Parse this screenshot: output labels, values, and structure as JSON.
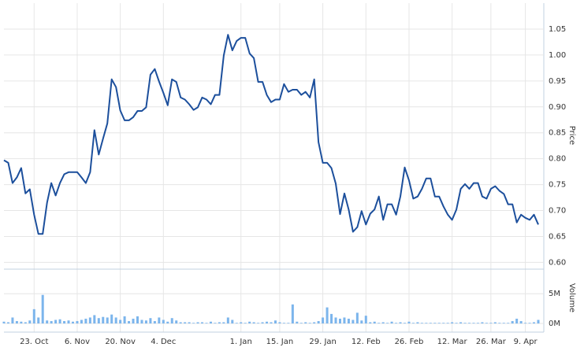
{
  "chart_data": [
    {
      "type": "line",
      "y_label": "Price",
      "color": "#1c4f9c",
      "grid": true,
      "categories": [
        null,
        null,
        null,
        null,
        null,
        null,
        null,
        "23. Oct",
        null,
        null,
        null,
        null,
        null,
        null,
        null,
        null,
        null,
        "6. Nov",
        null,
        null,
        null,
        null,
        null,
        null,
        null,
        null,
        null,
        "20. Nov",
        null,
        null,
        null,
        null,
        null,
        null,
        null,
        null,
        null,
        "4. Dec",
        null,
        null,
        null,
        null,
        null,
        null,
        null,
        null,
        null,
        null,
        null,
        null,
        null,
        null,
        null,
        null,
        null,
        "1. Jan",
        null,
        null,
        null,
        null,
        null,
        null,
        null,
        null,
        "15. Jan",
        null,
        null,
        null,
        null,
        null,
        null,
        null,
        null,
        null,
        "29. Jan",
        null,
        null,
        null,
        null,
        null,
        null,
        null,
        null,
        null,
        "12. Feb",
        null,
        null,
        null,
        null,
        null,
        null,
        null,
        null,
        null,
        "26. Feb",
        null,
        null,
        null,
        null,
        null,
        null,
        null,
        null,
        null,
        "12. Mar",
        null,
        null,
        null,
        null,
        null,
        null,
        null,
        null,
        "26. Mar",
        null,
        null,
        null,
        null,
        null,
        null,
        null,
        "9. Apr",
        null,
        null,
        null
      ],
      "values": [
        0.797,
        0.792,
        0.753,
        0.764,
        0.782,
        0.733,
        0.741,
        0.692,
        0.655,
        0.655,
        0.715,
        0.753,
        0.729,
        0.753,
        0.77,
        0.774,
        0.774,
        0.774,
        0.764,
        0.753,
        0.774,
        0.855,
        0.808,
        0.839,
        0.868,
        0.953,
        0.938,
        0.893,
        0.874,
        0.874,
        0.88,
        0.892,
        0.892,
        0.899,
        0.962,
        0.973,
        0.949,
        0.927,
        0.903,
        0.953,
        0.948,
        0.918,
        0.914,
        0.905,
        0.894,
        0.899,
        0.918,
        0.914,
        0.905,
        0.923,
        0.923,
        0.999,
        1.039,
        1.009,
        1.027,
        1.033,
        1.033,
        1.003,
        0.994,
        0.948,
        0.948,
        0.923,
        0.909,
        0.914,
        0.914,
        0.944,
        0.929,
        0.933,
        0.933,
        0.923,
        0.929,
        0.918,
        0.953,
        0.832,
        0.792,
        0.792,
        0.782,
        0.752,
        0.693,
        0.733,
        0.702,
        0.659,
        0.668,
        0.699,
        0.673,
        0.694,
        0.702,
        0.727,
        0.682,
        0.712,
        0.712,
        0.692,
        0.727,
        0.783,
        0.758,
        0.723,
        0.727,
        0.742,
        0.762,
        0.762,
        0.727,
        0.727,
        0.708,
        0.692,
        0.682,
        0.702,
        0.742,
        0.751,
        0.742,
        0.753,
        0.753,
        0.727,
        0.723,
        0.742,
        0.747,
        0.738,
        0.732,
        0.712,
        0.712,
        0.677,
        0.692,
        0.686,
        0.682,
        0.692,
        0.673
      ],
      "ylim": [
        0.59,
        1.1
      ],
      "yticks": [
        {
          "value": 0.6,
          "label": "0.60"
        },
        {
          "value": 0.65,
          "label": "0.65"
        },
        {
          "value": 0.7,
          "label": "0.70"
        },
        {
          "value": 0.75,
          "label": "0.75"
        },
        {
          "value": 0.8,
          "label": "0.80"
        },
        {
          "value": 0.85,
          "label": "0.85"
        },
        {
          "value": 0.9,
          "label": "0.90"
        },
        {
          "value": 0.95,
          "label": "0.95"
        },
        {
          "value": 1.0,
          "label": "1.00"
        },
        {
          "value": 1.05,
          "label": "1.05"
        }
      ]
    },
    {
      "type": "bar",
      "y_label": "Volume",
      "color": "#7cb5ec",
      "grid": true,
      "values": [
        0.3,
        0.2,
        1.0,
        0.4,
        0.3,
        0.2,
        0.5,
        2.4,
        1.0,
        4.8,
        0.5,
        0.4,
        0.6,
        0.7,
        0.4,
        0.5,
        0.3,
        0.4,
        0.6,
        0.8,
        1.0,
        1.4,
        0.9,
        1.1,
        1.0,
        1.5,
        1.0,
        0.6,
        1.2,
        0.4,
        0.8,
        1.2,
        0.6,
        0.5,
        0.9,
        0.4,
        1.0,
        0.6,
        0.3,
        0.9,
        0.5,
        0.2,
        0.2,
        0.2,
        0.1,
        0.2,
        0.2,
        0.1,
        0.3,
        0.1,
        0.2,
        0.2,
        1.0,
        0.6,
        0.1,
        0.2,
        0.1,
        0.3,
        0.2,
        0.1,
        0.2,
        0.3,
        0.2,
        0.5,
        0.2,
        0.1,
        0.1,
        3.2,
        0.3,
        0.1,
        0.2,
        0.1,
        0.2,
        0.4,
        1.0,
        2.7,
        1.6,
        1.0,
        0.8,
        1.0,
        0.8,
        0.6,
        1.8,
        0.5,
        1.3,
        0.2,
        0.3,
        0.1,
        0.2,
        0.1,
        0.3,
        0.1,
        0.2,
        0.1,
        0.3,
        0.1,
        0.2,
        0.1,
        0.1,
        0.1,
        0.1,
        0.1,
        0.1,
        0.1,
        0.2,
        0.1,
        0.2,
        0.1,
        0.1,
        0.1,
        0.1,
        0.2,
        0.1,
        0.1,
        0.2,
        0.1,
        0.1,
        0.1,
        0.4,
        0.8,
        0.4,
        0.1,
        0.1,
        0.2,
        0.6
      ],
      "ylim": [
        0,
        8.6
      ],
      "yticks": [
        {
          "value": 0,
          "label": "0M"
        },
        {
          "value": 5,
          "label": "5M"
        }
      ]
    }
  ]
}
